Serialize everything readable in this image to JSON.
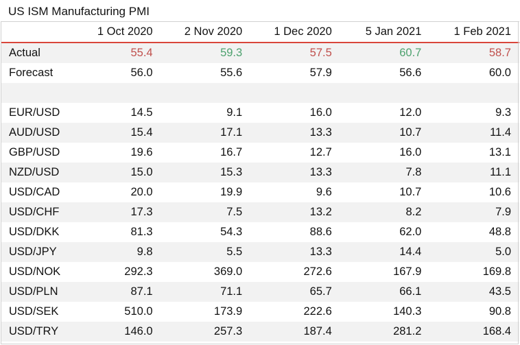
{
  "title": "US ISM Manufacturing PMI",
  "columns": [
    "",
    "1 Oct 2020",
    "2 Nov 2020",
    "1 Dec 2020",
    "5 Jan 2021",
    "1 Feb 2021"
  ],
  "actual": {
    "label": "Actual",
    "values": [
      "55.4",
      "59.3",
      "57.5",
      "60.7",
      "58.7"
    ],
    "colors": [
      "red",
      "green",
      "red",
      "green",
      "red"
    ]
  },
  "forecast": {
    "label": "Forecast",
    "values": [
      "56.0",
      "55.6",
      "57.9",
      "56.6",
      "60.0"
    ]
  },
  "pairs": [
    {
      "label": "EUR/USD",
      "values": [
        "14.5",
        "9.1",
        "16.0",
        "12.0",
        "9.3"
      ]
    },
    {
      "label": "AUD/USD",
      "values": [
        "15.4",
        "17.1",
        "13.3",
        "10.7",
        "11.4"
      ]
    },
    {
      "label": "GBP/USD",
      "values": [
        "19.6",
        "16.7",
        "12.7",
        "16.0",
        "13.1"
      ]
    },
    {
      "label": "NZD/USD",
      "values": [
        "15.0",
        "15.3",
        "13.3",
        "7.8",
        "11.1"
      ]
    },
    {
      "label": "USD/CAD",
      "values": [
        "20.0",
        "19.9",
        "9.6",
        "10.7",
        "10.6"
      ]
    },
    {
      "label": "USD/CHF",
      "values": [
        "17.3",
        "7.5",
        "13.2",
        "8.2",
        "7.9"
      ]
    },
    {
      "label": "USD/DKK",
      "values": [
        "81.3",
        "54.3",
        "88.6",
        "62.0",
        "48.8"
      ]
    },
    {
      "label": "USD/JPY",
      "values": [
        "9.8",
        "5.5",
        "13.3",
        "14.4",
        "5.0"
      ]
    },
    {
      "label": "USD/NOK",
      "values": [
        "292.3",
        "369.0",
        "272.6",
        "167.9",
        "169.8"
      ]
    },
    {
      "label": "USD/PLN",
      "values": [
        "87.1",
        "71.1",
        "65.7",
        "66.1",
        "43.5"
      ]
    },
    {
      "label": "USD/SEK",
      "values": [
        "510.0",
        "173.9",
        "222.6",
        "140.3",
        "90.8"
      ]
    },
    {
      "label": "USD/TRY",
      "values": [
        "146.0",
        "257.3",
        "187.4",
        "281.2",
        "168.4"
      ]
    }
  ],
  "colors": {
    "red": "#c0504d",
    "green": "#4ea26f",
    "header_rule": "#d9453a",
    "band": "#f2f2f2"
  }
}
